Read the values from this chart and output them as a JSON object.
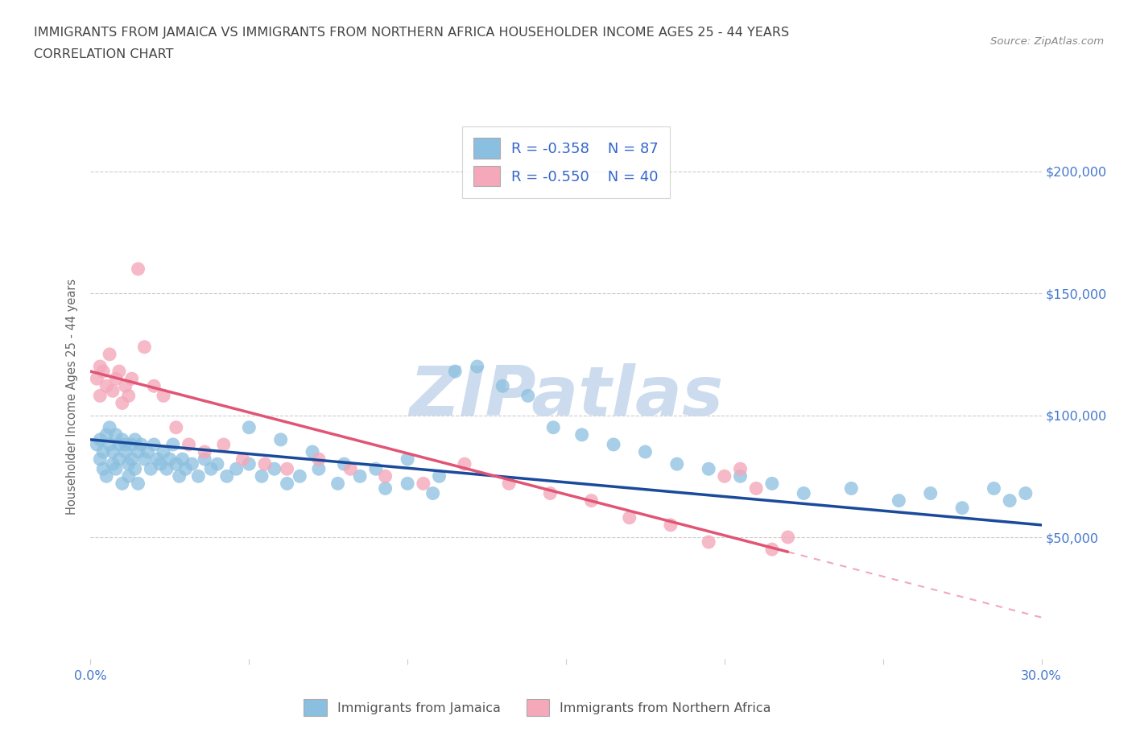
{
  "title_line1": "IMMIGRANTS FROM JAMAICA VS IMMIGRANTS FROM NORTHERN AFRICA HOUSEHOLDER INCOME AGES 25 - 44 YEARS",
  "title_line2": "CORRELATION CHART",
  "source_text": "Source: ZipAtlas.com",
  "ylabel": "Householder Income Ages 25 - 44 years",
  "xmin": 0.0,
  "xmax": 0.3,
  "ymin": 0,
  "ymax": 215000,
  "yticks": [
    0,
    50000,
    100000,
    150000,
    200000
  ],
  "ytick_labels_right": [
    "",
    "$50,000",
    "$100,000",
    "$150,000",
    "$200,000"
  ],
  "xticks": [
    0.0,
    0.05,
    0.1,
    0.15,
    0.2,
    0.25,
    0.3
  ],
  "r_jamaica": -0.358,
  "n_jamaica": 87,
  "r_nafrica": -0.55,
  "n_nafrica": 40,
  "color_jamaica": "#8bbfdf",
  "color_nafrica": "#f4a8ba",
  "color_jamaica_line": "#1a4a9a",
  "color_nafrica_line": "#e05575",
  "axis_tick_color": "#4477cc",
  "watermark_color": "#ccdcee",
  "legend_r_color": "#3366cc",
  "title_color": "#444444",
  "jamaica_x": [
    0.002,
    0.003,
    0.003,
    0.004,
    0.004,
    0.005,
    0.005,
    0.006,
    0.006,
    0.007,
    0.007,
    0.008,
    0.008,
    0.009,
    0.009,
    0.01,
    0.01,
    0.011,
    0.011,
    0.012,
    0.012,
    0.013,
    0.013,
    0.014,
    0.014,
    0.015,
    0.015,
    0.016,
    0.017,
    0.018,
    0.019,
    0.02,
    0.021,
    0.022,
    0.023,
    0.024,
    0.025,
    0.026,
    0.027,
    0.028,
    0.029,
    0.03,
    0.032,
    0.034,
    0.036,
    0.038,
    0.04,
    0.043,
    0.046,
    0.05,
    0.054,
    0.058,
    0.062,
    0.066,
    0.072,
    0.078,
    0.085,
    0.093,
    0.1,
    0.108,
    0.115,
    0.122,
    0.13,
    0.138,
    0.146,
    0.155,
    0.165,
    0.175,
    0.185,
    0.195,
    0.205,
    0.215,
    0.225,
    0.24,
    0.255,
    0.265,
    0.275,
    0.285,
    0.29,
    0.295,
    0.05,
    0.06,
    0.07,
    0.08,
    0.09,
    0.1,
    0.11
  ],
  "jamaica_y": [
    88000,
    82000,
    90000,
    78000,
    85000,
    92000,
    75000,
    88000,
    95000,
    80000,
    85000,
    78000,
    92000,
    88000,
    82000,
    90000,
    72000,
    85000,
    88000,
    80000,
    75000,
    88000,
    82000,
    78000,
    90000,
    85000,
    72000,
    88000,
    82000,
    85000,
    78000,
    88000,
    82000,
    80000,
    85000,
    78000,
    82000,
    88000,
    80000,
    75000,
    82000,
    78000,
    80000,
    75000,
    82000,
    78000,
    80000,
    75000,
    78000,
    80000,
    75000,
    78000,
    72000,
    75000,
    78000,
    72000,
    75000,
    70000,
    72000,
    68000,
    118000,
    120000,
    112000,
    108000,
    95000,
    92000,
    88000,
    85000,
    80000,
    78000,
    75000,
    72000,
    68000,
    70000,
    65000,
    68000,
    62000,
    70000,
    65000,
    68000,
    95000,
    90000,
    85000,
    80000,
    78000,
    82000,
    75000
  ],
  "nafrica_x": [
    0.002,
    0.003,
    0.003,
    0.004,
    0.005,
    0.006,
    0.007,
    0.008,
    0.009,
    0.01,
    0.011,
    0.012,
    0.013,
    0.015,
    0.017,
    0.02,
    0.023,
    0.027,
    0.031,
    0.036,
    0.042,
    0.048,
    0.055,
    0.062,
    0.072,
    0.082,
    0.093,
    0.105,
    0.118,
    0.132,
    0.145,
    0.158,
    0.17,
    0.183,
    0.195,
    0.2,
    0.205,
    0.21,
    0.215,
    0.22
  ],
  "nafrica_y": [
    115000,
    108000,
    120000,
    118000,
    112000,
    125000,
    110000,
    115000,
    118000,
    105000,
    112000,
    108000,
    115000,
    160000,
    128000,
    112000,
    108000,
    95000,
    88000,
    85000,
    88000,
    82000,
    80000,
    78000,
    82000,
    78000,
    75000,
    72000,
    80000,
    72000,
    68000,
    65000,
    58000,
    55000,
    48000,
    75000,
    78000,
    70000,
    45000,
    50000
  ],
  "jline_x0": 0.0,
  "jline_y0": 90000,
  "jline_x1": 0.3,
  "jline_y1": 55000,
  "nline_x0": 0.0,
  "nline_y0": 118000,
  "nline_x1": 0.22,
  "nline_y1": 44000,
  "nline_dash_x1": 0.3
}
